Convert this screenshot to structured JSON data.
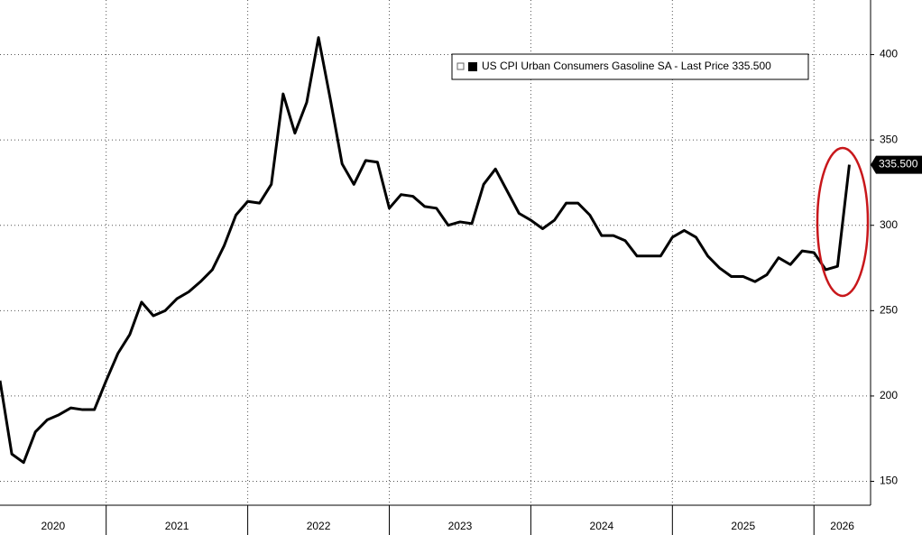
{
  "chart_data": {
    "type": "line",
    "x": [
      2020.25,
      2020.3333,
      2020.4167,
      2020.5,
      2020.5833,
      2020.6667,
      2020.75,
      2020.8333,
      2020.9167,
      2021,
      2021.0833,
      2021.1667,
      2021.25,
      2021.3333,
      2021.4167,
      2021.5,
      2021.5833,
      2021.6667,
      2021.75,
      2021.8333,
      2021.9167,
      2022,
      2022.0833,
      2022.1667,
      2022.25,
      2022.3333,
      2022.4167,
      2022.5,
      2022.5833,
      2022.6667,
      2022.75,
      2022.8333,
      2022.9167,
      2023,
      2023.0833,
      2023.1667,
      2023.25,
      2023.3333,
      2023.4167,
      2023.5,
      2023.5833,
      2023.6667,
      2023.75,
      2023.8333,
      2023.9167,
      2024,
      2024.0833,
      2024.1667,
      2024.25,
      2024.3333,
      2024.4167,
      2024.5,
      2024.5833,
      2024.6667,
      2024.75,
      2024.8333,
      2024.9167,
      2025,
      2025.0833,
      2025.1667,
      2025.25,
      2025.3333,
      2025.4167,
      2025.5,
      2025.5833,
      2025.6667,
      2025.75,
      2025.8333,
      2025.9167,
      2026,
      2026.0833,
      2026.1667,
      2026.25
    ],
    "series": [
      {
        "name": "US CPI Urban Consumers Gasoline SA - Last Price 335.500",
        "color": "#000000",
        "values": [
          209,
          166,
          161,
          179,
          186,
          189,
          193,
          192,
          192,
          209,
          225,
          236,
          255,
          247,
          250,
          257,
          261,
          267,
          274,
          288,
          306,
          314,
          313,
          324,
          377,
          354,
          372,
          410,
          374,
          336,
          324,
          338,
          337,
          310,
          318,
          317,
          311,
          310,
          300,
          302,
          301,
          324,
          333,
          320,
          307,
          303,
          298,
          303,
          313,
          313,
          306,
          294,
          294,
          291,
          282,
          282,
          282,
          293,
          297,
          293,
          282,
          275,
          270,
          270,
          267,
          271,
          281,
          277,
          285,
          284,
          274,
          276,
          335.5
        ]
      }
    ],
    "last_price": {
      "value": 335.5,
      "label": "335.500"
    },
    "xlim": [
      2020.25,
      2026.4
    ],
    "xticks": [
      2020,
      2021,
      2022,
      2023,
      2024,
      2025,
      2026
    ],
    "ylim": [
      136,
      432
    ],
    "yticks": [
      150,
      200,
      250,
      300,
      350,
      400
    ],
    "grid": true
  }
}
